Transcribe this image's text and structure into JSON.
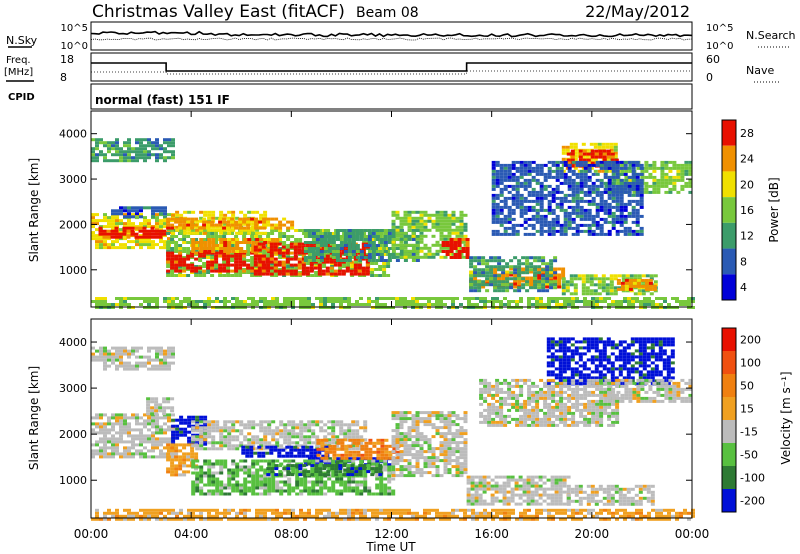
{
  "header": {
    "title": "Christmas Valley East (fitACF)",
    "beam": "Beam 08",
    "date": "22/May/2012"
  },
  "summary_panel": {
    "nsky_label": "N.Sky",
    "nsky_ticks": [
      "10^5",
      "10^0"
    ],
    "nsearch_label": "N.Search",
    "nsearch_ticks": [
      "10^5",
      "10^0"
    ],
    "freq_label": "Freq.",
    "freq_unit": "[MHz]",
    "freq_ticks": [
      18,
      8
    ],
    "nave_label": "Nave",
    "nave_ticks": [
      60,
      0
    ],
    "cpid_label": "CPID",
    "cpid_value": "normal (fast) 151 IF"
  },
  "chart_data": [
    {
      "type": "heatmap",
      "name": "power",
      "ylabel": "Slant Range [km]",
      "ylim": [
        180,
        4500
      ],
      "yticks": [
        "1000",
        "2000",
        "3000",
        "4000"
      ],
      "colorbar_label": "Power [dB]",
      "colorbar_ticks": [
        "28",
        "24",
        "20",
        "16",
        "12",
        "8",
        "4"
      ],
      "colors": [
        "#0000d8",
        "#2a5ab4",
        "#3c9c6a",
        "#78c83c",
        "#f0e000",
        "#f09000",
        "#e81000"
      ],
      "bands": [
        {
          "t0": 0,
          "t1": 3.2,
          "r0": 1500,
          "r1": 2250,
          "level": 4
        },
        {
          "t0": 0.3,
          "t1": 3.0,
          "r0": 1700,
          "r1": 1950,
          "level": 6
        },
        {
          "t0": 0,
          "t1": 3.2,
          "r0": 3400,
          "r1": 3900,
          "level": 2
        },
        {
          "t0": 0.8,
          "t1": 3.0,
          "r0": 2200,
          "r1": 2400,
          "level": 1
        },
        {
          "t0": 3.0,
          "t1": 11.8,
          "r0": 900,
          "r1": 1900,
          "level": 3
        },
        {
          "t0": 3.0,
          "t1": 7.0,
          "r0": 1000,
          "r1": 1400,
          "level": 6
        },
        {
          "t0": 4.0,
          "t1": 7.5,
          "r0": 1400,
          "r1": 1700,
          "level": 5
        },
        {
          "t0": 6.5,
          "t1": 11.0,
          "r0": 900,
          "r1": 1600,
          "level": 6
        },
        {
          "t0": 3.2,
          "t1": 7.0,
          "r0": 1800,
          "r1": 2300,
          "level": 4
        },
        {
          "t0": 3.0,
          "t1": 8.0,
          "r0": 1950,
          "r1": 2150,
          "level": 5
        },
        {
          "t0": 8.5,
          "t1": 13.0,
          "r0": 1200,
          "r1": 1900,
          "level": 2
        },
        {
          "t0": 12.0,
          "t1": 15.0,
          "r0": 1300,
          "r1": 2300,
          "level": 3
        },
        {
          "t0": 14.0,
          "t1": 15.0,
          "r0": 1300,
          "r1": 1700,
          "level": 6
        },
        {
          "t0": 15.1,
          "t1": 18.8,
          "r0": 650,
          "r1": 1050,
          "level": 5
        },
        {
          "t0": 15.1,
          "t1": 18.5,
          "r0": 550,
          "r1": 1300,
          "level": 2
        },
        {
          "t0": 18.8,
          "t1": 22.5,
          "r0": 450,
          "r1": 900,
          "level": 3
        },
        {
          "t0": 21.0,
          "t1": 22.5,
          "r0": 600,
          "r1": 800,
          "level": 5
        },
        {
          "t0": 18.8,
          "t1": 21.0,
          "r0": 3200,
          "r1": 3800,
          "level": 4
        },
        {
          "t0": 19.0,
          "t1": 21.0,
          "r0": 3300,
          "r1": 3650,
          "level": 6
        },
        {
          "t0": 20.5,
          "t1": 24.0,
          "r0": 2700,
          "r1": 3400,
          "level": 3
        },
        {
          "t0": 16.0,
          "t1": 22.0,
          "r0": 1800,
          "r1": 3400,
          "level": 1
        },
        {
          "t0": 0,
          "t1": 24.0,
          "r0": 180,
          "r1": 400,
          "level": 3
        }
      ]
    },
    {
      "type": "heatmap",
      "name": "velocity",
      "ylabel": "Slant Range [km]",
      "ylim": [
        180,
        4500
      ],
      "yticks": [
        "1000",
        "2000",
        "3000",
        "4000"
      ],
      "xlabel": "Time UT",
      "xlim": [
        0,
        24
      ],
      "xticks": [
        "00:00",
        "04:00",
        "08:00",
        "12:00",
        "16:00",
        "20:00",
        "00:00"
      ],
      "colorbar_label": "Velocity [m s⁻¹]",
      "colorbar_ticks": [
        "200",
        "100",
        "50",
        "15",
        "-15",
        "-50",
        "-100",
        "-200"
      ],
      "colors": [
        "#0010d8",
        "#2e7a34",
        "#58c040",
        "#bcbcbc",
        "#f0a020",
        "#f08010",
        "#f05010",
        "#e81000"
      ],
      "bands": [
        {
          "t0": 0,
          "t1": 3.2,
          "r0": 1500,
          "r1": 2450,
          "level": 3
        },
        {
          "t0": 0,
          "t1": 3.2,
          "r0": 3400,
          "r1": 3900,
          "level": 3
        },
        {
          "t0": 2.2,
          "t1": 3.3,
          "r0": 2450,
          "r1": 2800,
          "level": 3
        },
        {
          "t0": 3.2,
          "t1": 4.5,
          "r0": 1800,
          "r1": 2400,
          "level": 0
        },
        {
          "t0": 3.0,
          "t1": 4.2,
          "r0": 1100,
          "r1": 1800,
          "level": 4
        },
        {
          "t0": 4.0,
          "t1": 11.0,
          "r0": 1700,
          "r1": 2300,
          "level": 3
        },
        {
          "t0": 6.0,
          "t1": 9.5,
          "r0": 1550,
          "r1": 1750,
          "level": 0
        },
        {
          "t0": 8.5,
          "t1": 12.0,
          "r0": 1350,
          "r1": 1500,
          "level": 0
        },
        {
          "t0": 4.0,
          "t1": 12.0,
          "r0": 700,
          "r1": 1450,
          "level": 2
        },
        {
          "t0": 7.0,
          "t1": 11.5,
          "r0": 1100,
          "r1": 1350,
          "level": 1
        },
        {
          "t0": 9.0,
          "t1": 12.3,
          "r0": 1500,
          "r1": 1900,
          "level": 5
        },
        {
          "t0": 12.0,
          "t1": 15.0,
          "r0": 1100,
          "r1": 2500,
          "level": 3
        },
        {
          "t0": 15.0,
          "t1": 19.0,
          "r0": 500,
          "r1": 1100,
          "level": 3
        },
        {
          "t0": 19.0,
          "t1": 22.5,
          "r0": 450,
          "r1": 900,
          "level": 3
        },
        {
          "t0": 18.2,
          "t1": 23.2,
          "r0": 3100,
          "r1": 4100,
          "level": 0
        },
        {
          "t0": 20.5,
          "t1": 24.0,
          "r0": 2700,
          "r1": 3200,
          "level": 3
        },
        {
          "t0": 15.5,
          "t1": 21.0,
          "r0": 2200,
          "r1": 3200,
          "level": 3
        },
        {
          "t0": 0,
          "t1": 24.0,
          "r0": 180,
          "r1": 380,
          "level": 4
        }
      ]
    }
  ]
}
